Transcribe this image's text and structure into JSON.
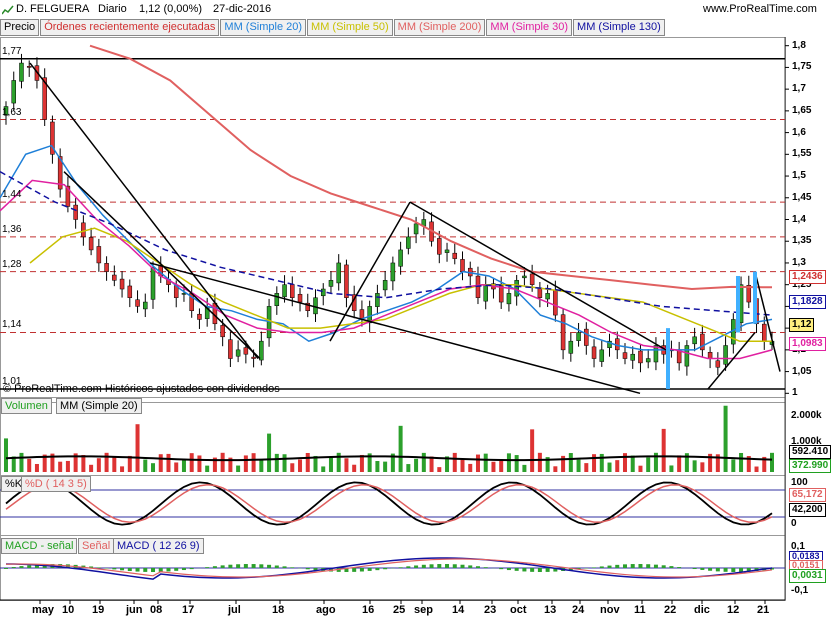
{
  "header": {
    "symbol": "D. FELGUERA",
    "period": "Diario",
    "quote": "1,12 (0,00%)",
    "date": "27-dic-2016",
    "site": "www.ProRealTime.com"
  },
  "tabs": [
    {
      "label": "Precio",
      "color": "#000000"
    },
    {
      "label": "Órdenes recientemente ejecutadas",
      "color": "#d03030"
    },
    {
      "label": "MM (Simple 20)",
      "color": "#1e7fd8"
    },
    {
      "label": "MM (Simple 50)",
      "color": "#c8c000"
    },
    {
      "label": "MM (Simple 200)",
      "color": "#e06060"
    },
    {
      "label": "MM (Simple 30)",
      "color": "#e020a0"
    },
    {
      "label": "MM (Simple 130)",
      "color": "#1010a0"
    }
  ],
  "copyright": "© ProRealTime.com  Históricos ajustados con dividendos",
  "price_axis": [
    "1,8",
    "1,75",
    "1,7",
    "1,65",
    "1,6",
    "1,55",
    "1,5",
    "1,45",
    "1,4",
    "1,35",
    "1,3",
    "1,25",
    "1,2",
    "1,15",
    "1,1",
    "1,05",
    "1"
  ],
  "levels": [
    "1,77",
    "1,63",
    "1,44",
    "1,36",
    "1,28",
    "1,14",
    "1,01"
  ],
  "price_tags": [
    {
      "text": "1,2436",
      "color": "#d03030"
    },
    {
      "text": "1,1828",
      "color": "#1010a0"
    },
    {
      "text": "1,12",
      "color": "#000000"
    },
    {
      "text": "1,0983",
      "color": "#e020a0"
    }
  ],
  "volume": {
    "tabs": [
      {
        "label": "Volumen",
        "color": "#20a020"
      },
      {
        "label": "MM (Simple 20)",
        "color": "#000000"
      }
    ],
    "axis": [
      "2.000k",
      "1.000k"
    ],
    "tags": [
      {
        "text": "592.410",
        "color": "#000000"
      },
      {
        "text": "372.990",
        "color": "#20a020"
      }
    ]
  },
  "stoch": {
    "tabs": [
      {
        "label": "%K",
        "color": "#000000"
      },
      {
        "label": "%D ( 14 3 5)",
        "color": "#e06060"
      }
    ],
    "axis": [
      "100",
      "0"
    ],
    "tags": [
      {
        "text": "65,172",
        "color": "#e06060"
      },
      {
        "text": "42,200",
        "color": "#000000"
      }
    ]
  },
  "macd": {
    "tabs": [
      {
        "label": "MACD - señal",
        "color": "#20a020"
      },
      {
        "label": "Señal",
        "color": "#e06060"
      },
      {
        "label": "MACD ( 12 26 9)",
        "color": "#1010a0"
      }
    ],
    "axis": [
      "0,1",
      "-0,1"
    ],
    "tags": [
      {
        "text": "0,0183",
        "color": "#1010a0"
      },
      {
        "text": "0,0151",
        "color": "#e06060"
      },
      {
        "text": "0,0031",
        "color": "#20a020"
      }
    ]
  },
  "x_labels": [
    "may",
    "10",
    "19",
    "jun",
    "08",
    "17",
    "jul",
    "18",
    "ago",
    "16",
    "25",
    "sep",
    "14",
    "23",
    "oct",
    "13",
    "24",
    "nov",
    "11",
    "22",
    "dic",
    "12",
    "21"
  ],
  "chart_data": {
    "type": "candlestick",
    "title": "D. FELGUERA Diario",
    "ylim": [
      0.98,
      1.82
    ],
    "series": [
      {
        "name": "Precio",
        "close": [
          1.66,
          1.72,
          1.76,
          1.75,
          1.72,
          1.63,
          1.55,
          1.47,
          1.43,
          1.4,
          1.36,
          1.33,
          1.3,
          1.28,
          1.26,
          1.24,
          1.22,
          1.2,
          1.21,
          1.29,
          1.27,
          1.25,
          1.22,
          1.23,
          1.19,
          1.17,
          1.2,
          1.16,
          1.13,
          1.08,
          1.1,
          1.09,
          1.08,
          1.12,
          1.2,
          1.23,
          1.25,
          1.22,
          1.21,
          1.19,
          1.22,
          1.24,
          1.26,
          1.3,
          1.22,
          1.19,
          1.17,
          1.2,
          1.23,
          1.26,
          1.3,
          1.33,
          1.36,
          1.39,
          1.4,
          1.35,
          1.32,
          1.33,
          1.31,
          1.28,
          1.27,
          1.22,
          1.25,
          1.24,
          1.21,
          1.23,
          1.26,
          1.27,
          1.25,
          1.22,
          1.23,
          1.18,
          1.1,
          1.12,
          1.14,
          1.11,
          1.08,
          1.1,
          1.12,
          1.1,
          1.08,
          1.09,
          1.07,
          1.08,
          1.11,
          1.09,
          1.1,
          1.07,
          1.11,
          1.13,
          1.1,
          1.08,
          1.06,
          1.11,
          1.17,
          1.25,
          1.21,
          1.16,
          1.12,
          1.12
        ]
      },
      {
        "name": "MM (Simple 20)",
        "values": [
          1.45,
          1.55,
          1.57,
          1.48,
          1.41,
          1.35,
          1.29,
          1.24,
          1.2,
          1.19,
          1.17,
          1.16,
          1.12,
          1.14,
          1.17,
          1.19,
          1.21,
          1.24,
          1.28,
          1.27,
          1.24,
          1.18,
          1.16,
          1.13,
          1.11,
          1.1,
          1.1,
          1.1,
          1.13,
          1.16,
          1.17
        ]
      },
      {
        "name": "MM (Simple 50)",
        "values": [
          1.3,
          1.36,
          1.38,
          1.35,
          1.3,
          1.25,
          1.21,
          1.18,
          1.15,
          1.15,
          1.16,
          1.17,
          1.2,
          1.23,
          1.25,
          1.25,
          1.24,
          1.23,
          1.22,
          1.21,
          1.18,
          1.15,
          1.12,
          1.12
        ]
      },
      {
        "name": "MM (Simple 200)",
        "values": [
          1.8,
          1.77,
          1.72,
          1.64,
          1.56,
          1.5,
          1.46,
          1.43,
          1.4,
          1.35,
          1.31,
          1.28,
          1.27,
          1.26,
          1.25,
          1.24,
          1.245,
          1.244
        ]
      },
      {
        "name": "MM (Simple 30)",
        "values": [
          1.42,
          1.49,
          1.48,
          1.4,
          1.34,
          1.27,
          1.23,
          1.18,
          1.15,
          1.14,
          1.14,
          1.15,
          1.18,
          1.21,
          1.24,
          1.25,
          1.24,
          1.21,
          1.18,
          1.14,
          1.11,
          1.1,
          1.08,
          1.08,
          1.1
        ]
      },
      {
        "name": "MM (Simple 130)",
        "values": [
          1.51,
          1.44,
          1.39,
          1.33,
          1.29,
          1.26,
          1.23,
          1.22,
          1.24,
          1.25,
          1.24,
          1.22,
          1.2,
          1.19,
          1.18
        ]
      }
    ]
  }
}
